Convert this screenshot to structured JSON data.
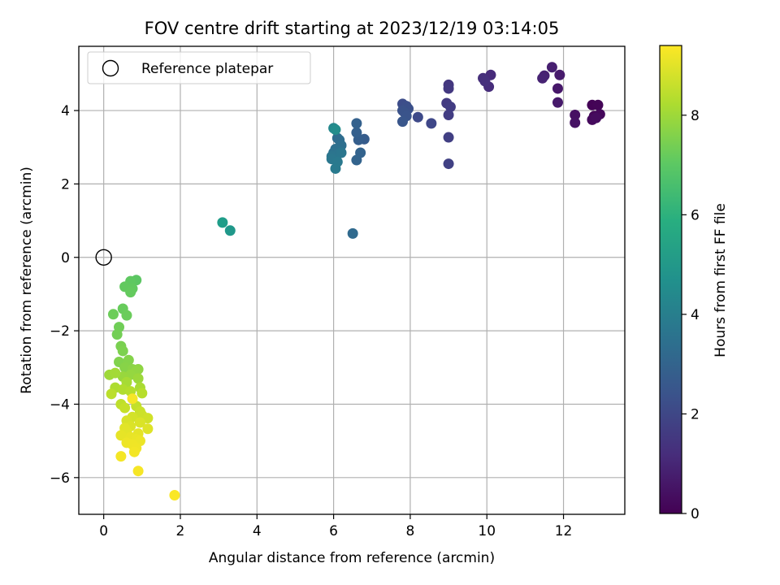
{
  "chart_data": {
    "type": "scatter",
    "title": "FOV centre drift starting at 2023/12/19 03:14:05",
    "xlabel": "Angular distance from reference (arcmin)",
    "ylabel": "Rotation from reference (arcmin)",
    "colorbar_label": "Hours from first FF file",
    "xlim": [
      -0.65,
      13.6
    ],
    "ylim": [
      -7.0,
      5.75
    ],
    "clim": [
      0,
      9.4
    ],
    "colormap": "viridis",
    "x_ticks": [
      0,
      2,
      4,
      6,
      8,
      10,
      12
    ],
    "y_ticks": [
      -6,
      -4,
      -2,
      0,
      2,
      4
    ],
    "colorbar_ticks": [
      0,
      2,
      4,
      6,
      8
    ],
    "grid": true,
    "legend": {
      "position": "top-left",
      "entries": [
        "Reference platepar"
      ]
    },
    "reference": {
      "x": 0,
      "y": 0
    },
    "points": [
      {
        "x": 12.75,
        "y": 4.15,
        "c": 0.05
      },
      {
        "x": 12.9,
        "y": 4.15,
        "c": 0.1
      },
      {
        "x": 12.8,
        "y": 3.85,
        "c": 0.15
      },
      {
        "x": 12.95,
        "y": 3.9,
        "c": 0.2
      },
      {
        "x": 12.75,
        "y": 3.75,
        "c": 0.25
      },
      {
        "x": 12.85,
        "y": 3.8,
        "c": 0.3
      },
      {
        "x": 12.3,
        "y": 3.88,
        "c": 0.4
      },
      {
        "x": 12.3,
        "y": 3.67,
        "c": 0.45
      },
      {
        "x": 11.85,
        "y": 4.6,
        "c": 0.6
      },
      {
        "x": 11.85,
        "y": 4.22,
        "c": 0.65
      },
      {
        "x": 11.9,
        "y": 4.97,
        "c": 0.7
      },
      {
        "x": 11.7,
        "y": 5.18,
        "c": 0.8
      },
      {
        "x": 11.5,
        "y": 4.95,
        "c": 0.85
      },
      {
        "x": 11.45,
        "y": 4.88,
        "c": 0.9
      },
      {
        "x": 10.1,
        "y": 4.97,
        "c": 1.15
      },
      {
        "x": 10.05,
        "y": 4.65,
        "c": 1.2
      },
      {
        "x": 9.9,
        "y": 4.88,
        "c": 1.25
      },
      {
        "x": 9.95,
        "y": 4.8,
        "c": 1.3
      },
      {
        "x": 9.0,
        "y": 4.7,
        "c": 1.5
      },
      {
        "x": 9.0,
        "y": 4.6,
        "c": 1.55
      },
      {
        "x": 8.95,
        "y": 4.2,
        "c": 1.6
      },
      {
        "x": 9.05,
        "y": 4.1,
        "c": 1.65
      },
      {
        "x": 9.0,
        "y": 3.88,
        "c": 1.7
      },
      {
        "x": 9.0,
        "y": 3.27,
        "c": 1.75
      },
      {
        "x": 9.0,
        "y": 2.55,
        "c": 1.8
      },
      {
        "x": 8.55,
        "y": 3.65,
        "c": 2.0
      },
      {
        "x": 8.2,
        "y": 3.82,
        "c": 2.1
      },
      {
        "x": 7.8,
        "y": 4.18,
        "c": 2.2
      },
      {
        "x": 7.9,
        "y": 4.12,
        "c": 2.25
      },
      {
        "x": 7.95,
        "y": 4.05,
        "c": 2.3
      },
      {
        "x": 7.8,
        "y": 4.0,
        "c": 2.35
      },
      {
        "x": 7.85,
        "y": 3.95,
        "c": 2.4
      },
      {
        "x": 7.9,
        "y": 3.85,
        "c": 2.45
      },
      {
        "x": 7.8,
        "y": 3.7,
        "c": 2.5
      },
      {
        "x": 6.8,
        "y": 3.22,
        "c": 2.7
      },
      {
        "x": 6.65,
        "y": 3.2,
        "c": 2.8
      },
      {
        "x": 6.6,
        "y": 3.4,
        "c": 2.85
      },
      {
        "x": 6.6,
        "y": 3.65,
        "c": 2.9
      },
      {
        "x": 6.7,
        "y": 2.85,
        "c": 2.95
      },
      {
        "x": 6.6,
        "y": 2.65,
        "c": 3.0
      },
      {
        "x": 6.5,
        "y": 0.65,
        "c": 3.2
      },
      {
        "x": 6.1,
        "y": 3.25,
        "c": 3.3
      },
      {
        "x": 6.15,
        "y": 3.2,
        "c": 3.35
      },
      {
        "x": 6.2,
        "y": 3.05,
        "c": 3.4
      },
      {
        "x": 6.05,
        "y": 2.95,
        "c": 3.45
      },
      {
        "x": 6.15,
        "y": 2.9,
        "c": 3.5
      },
      {
        "x": 6.0,
        "y": 2.85,
        "c": 3.55
      },
      {
        "x": 6.1,
        "y": 2.8,
        "c": 3.6
      },
      {
        "x": 5.95,
        "y": 2.75,
        "c": 3.65
      },
      {
        "x": 6.2,
        "y": 2.85,
        "c": 3.7
      },
      {
        "x": 5.95,
        "y": 2.68,
        "c": 3.75
      },
      {
        "x": 6.1,
        "y": 2.6,
        "c": 3.8
      },
      {
        "x": 6.05,
        "y": 2.42,
        "c": 3.85
      },
      {
        "x": 6.0,
        "y": 3.52,
        "c": 4.4
      },
      {
        "x": 6.05,
        "y": 3.48,
        "c": 4.6
      },
      {
        "x": 3.3,
        "y": 0.73,
        "c": 5.0
      },
      {
        "x": 3.1,
        "y": 0.95,
        "c": 5.2
      },
      {
        "x": 0.85,
        "y": -0.62,
        "c": 7.0
      },
      {
        "x": 0.7,
        "y": -0.65,
        "c": 7.05
      },
      {
        "x": 0.55,
        "y": -0.8,
        "c": 7.1
      },
      {
        "x": 0.75,
        "y": -0.85,
        "c": 7.1
      },
      {
        "x": 0.7,
        "y": -0.95,
        "c": 7.15
      },
      {
        "x": 0.5,
        "y": -1.4,
        "c": 7.2
      },
      {
        "x": 0.6,
        "y": -1.58,
        "c": 7.25
      },
      {
        "x": 0.25,
        "y": -1.55,
        "c": 7.3
      },
      {
        "x": 0.4,
        "y": -1.9,
        "c": 7.35
      },
      {
        "x": 0.35,
        "y": -2.1,
        "c": 7.4
      },
      {
        "x": 0.45,
        "y": -2.42,
        "c": 7.5
      },
      {
        "x": 0.5,
        "y": -2.55,
        "c": 7.55
      },
      {
        "x": 0.4,
        "y": -2.85,
        "c": 7.6
      },
      {
        "x": 0.65,
        "y": -2.8,
        "c": 7.65
      },
      {
        "x": 0.55,
        "y": -3.0,
        "c": 7.7
      },
      {
        "x": 0.75,
        "y": -3.05,
        "c": 7.75
      },
      {
        "x": 0.9,
        "y": -3.05,
        "c": 7.8
      },
      {
        "x": 0.85,
        "y": -3.1,
        "c": 7.85
      },
      {
        "x": 0.7,
        "y": -3.2,
        "c": 7.9
      },
      {
        "x": 0.5,
        "y": -3.25,
        "c": 7.95
      },
      {
        "x": 0.9,
        "y": -3.3,
        "c": 8.0
      },
      {
        "x": 0.15,
        "y": -3.2,
        "c": 8.05
      },
      {
        "x": 0.3,
        "y": -3.15,
        "c": 8.1
      },
      {
        "x": 0.6,
        "y": -3.4,
        "c": 8.15
      },
      {
        "x": 0.95,
        "y": -3.55,
        "c": 8.2
      },
      {
        "x": 0.3,
        "y": -3.55,
        "c": 8.25
      },
      {
        "x": 0.5,
        "y": -3.6,
        "c": 8.3
      },
      {
        "x": 0.7,
        "y": -3.65,
        "c": 8.35
      },
      {
        "x": 1.0,
        "y": -3.7,
        "c": 8.4
      },
      {
        "x": 0.2,
        "y": -3.72,
        "c": 8.45
      },
      {
        "x": 0.45,
        "y": -4.0,
        "c": 8.5
      },
      {
        "x": 0.85,
        "y": -4.05,
        "c": 8.55
      },
      {
        "x": 0.55,
        "y": -4.1,
        "c": 8.6
      },
      {
        "x": 0.95,
        "y": -4.2,
        "c": 8.65
      },
      {
        "x": 1.0,
        "y": -4.3,
        "c": 8.7
      },
      {
        "x": 1.15,
        "y": -4.38,
        "c": 8.75
      },
      {
        "x": 0.75,
        "y": -4.35,
        "c": 8.8
      },
      {
        "x": 0.6,
        "y": -4.45,
        "c": 8.85
      },
      {
        "x": 0.95,
        "y": -4.5,
        "c": 8.9
      },
      {
        "x": 0.7,
        "y": -4.6,
        "c": 8.92
      },
      {
        "x": 1.15,
        "y": -4.67,
        "c": 8.95
      },
      {
        "x": 0.55,
        "y": -4.65,
        "c": 9.0
      },
      {
        "x": 0.6,
        "y": -4.75,
        "c": 9.02
      },
      {
        "x": 0.9,
        "y": -4.8,
        "c": 9.05
      },
      {
        "x": 0.45,
        "y": -4.85,
        "c": 9.07
      },
      {
        "x": 0.7,
        "y": -4.9,
        "c": 9.1
      },
      {
        "x": 0.85,
        "y": -4.95,
        "c": 9.12
      },
      {
        "x": 0.95,
        "y": -5.0,
        "c": 9.15
      },
      {
        "x": 0.6,
        "y": -5.05,
        "c": 9.17
      },
      {
        "x": 0.75,
        "y": -5.1,
        "c": 9.2
      },
      {
        "x": 0.85,
        "y": -5.2,
        "c": 9.22
      },
      {
        "x": 0.8,
        "y": -5.3,
        "c": 9.25
      },
      {
        "x": 0.45,
        "y": -5.42,
        "c": 9.27
      },
      {
        "x": 0.75,
        "y": -3.85,
        "c": 9.3
      },
      {
        "x": 0.9,
        "y": -5.82,
        "c": 9.3
      },
      {
        "x": 1.85,
        "y": -6.48,
        "c": 9.35
      }
    ]
  }
}
